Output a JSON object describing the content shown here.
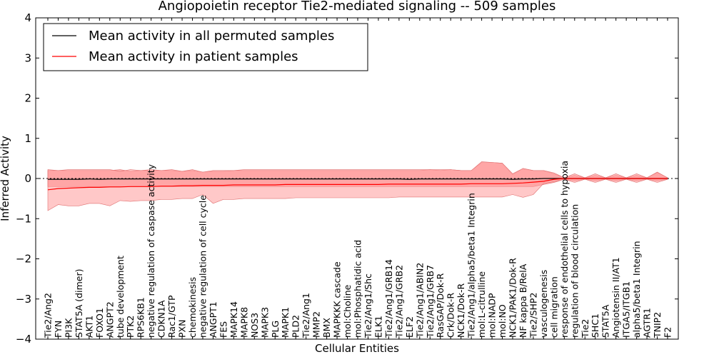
{
  "chart_data": {
    "type": "line",
    "title": "Angiopoietin receptor Tie2-mediated signaling -- 509 samples",
    "xlabel": "Cellular Entities",
    "ylabel": "Inferred Activity",
    "ylim": [
      -4,
      4
    ],
    "yticks": [
      -4,
      -3,
      -2,
      -1,
      0,
      1,
      2,
      3,
      4
    ],
    "grid": false,
    "legend_position": "top-left",
    "categories": [
      "Tie2/Ang2",
      "FYN",
      "PI3K",
      "STAT5A (dimer)",
      "AKT1",
      "FOXO1",
      "ANGPT2",
      "tube development",
      "PTK2",
      "RPS6KB1",
      "negative regulation of caspase activity",
      "CDKN1A",
      "Rac1/GTP",
      "PXN",
      "chemokinesis",
      "negative regulation of cell cycle",
      "ANGPT1",
      "FES",
      "MAPK14",
      "MAPK8",
      "NOS3",
      "MAPK3",
      "PLG",
      "MAPK1",
      "PLD2",
      "Tie2/Ang1",
      "MMP2",
      "BMX",
      "MAPKKK cascade",
      "mol:Choline",
      "mol:Phosphatidic acid",
      "Tie2/Ang1/Shc",
      "ELK1",
      "Tie2/Ang1/GRB14",
      "Tie2/Ang1/GRB2",
      "ELF2",
      "Tie2/Ang1/ABIN2",
      "Tie2/Ang1/GRB7",
      "RasGAP/Dok-R",
      "Crk/Dok-R",
      "NCK1/Dok-R",
      "Tie2/Ang1/alpha5/beta1 Integrin",
      "mol:L-citrulline",
      "mol:NADP",
      "mol:NO",
      "NCK1/PAK1/Dok-R",
      "NF kappa B/RelA",
      "Tie2/SHP2",
      "vasculogenesis",
      "cell migration",
      "response of endothelial cells to hypoxia",
      "regulation of blood circulation",
      "Tie2",
      "SHC1",
      "STAT5A",
      "Angiotensin II/AT1",
      "ITGA5/ITGB1",
      "alpha5/beta1 Integrin",
      "AGTR1",
      "TNIP2",
      "F2"
    ],
    "series": [
      {
        "name": "Mean activity in all permuted samples",
        "color": "#000000",
        "values": [
          -0.02,
          -0.02,
          -0.02,
          -0.02,
          -0.01,
          -0.02,
          -0.01,
          -0.01,
          -0.01,
          -0.01,
          -0.01,
          -0.01,
          -0.01,
          -0.01,
          -0.01,
          -0.01,
          -0.01,
          -0.01,
          -0.01,
          -0.01,
          -0.01,
          -0.01,
          -0.01,
          -0.01,
          -0.01,
          -0.01,
          -0.01,
          -0.01,
          -0.01,
          -0.01,
          -0.01,
          -0.01,
          -0.01,
          -0.01,
          -0.01,
          -0.02,
          -0.01,
          -0.01,
          -0.01,
          -0.01,
          -0.01,
          -0.01,
          -0.01,
          -0.01,
          -0.01,
          -0.02,
          -0.01,
          -0.01,
          0.0,
          0.0,
          0.0,
          0.0,
          0.0,
          0.0,
          0.0,
          0.0,
          0.0,
          0.0,
          0.0,
          0.0,
          0.0
        ],
        "band_upper": [
          0.2,
          0.2,
          0.2,
          0.2,
          0.2,
          0.2,
          0.2,
          0.22,
          0.18,
          0.2,
          0.2,
          0.2,
          0.2,
          0.18,
          0.2,
          0.16,
          0.18,
          0.18,
          0.2,
          0.2,
          0.2,
          0.2,
          0.2,
          0.2,
          0.2,
          0.2,
          0.2,
          0.2,
          0.2,
          0.2,
          0.2,
          0.2,
          0.2,
          0.2,
          0.2,
          0.2,
          0.2,
          0.22,
          0.2,
          0.22,
          0.2,
          0.2,
          0.4,
          0.4,
          0.38,
          0.1,
          0.25,
          0.2,
          0.2,
          0.12,
          0.02,
          0.08,
          0.02,
          0.08,
          0.02,
          0.08,
          0.02,
          0.08,
          0.02,
          0.15,
          0.02
        ],
        "band_lower": [
          -0.2,
          -0.2,
          -0.2,
          -0.2,
          -0.2,
          -0.2,
          -0.2,
          -0.2,
          -0.2,
          -0.2,
          -0.2,
          -0.2,
          -0.2,
          -0.2,
          -0.2,
          -0.2,
          -0.2,
          -0.2,
          -0.2,
          -0.2,
          -0.2,
          -0.2,
          -0.2,
          -0.2,
          -0.2,
          -0.2,
          -0.2,
          -0.2,
          -0.2,
          -0.2,
          -0.2,
          -0.2,
          -0.2,
          -0.2,
          -0.2,
          -0.2,
          -0.2,
          -0.2,
          -0.2,
          -0.2,
          -0.2,
          -0.2,
          -0.2,
          -0.2,
          -0.2,
          -0.2,
          -0.2,
          -0.2,
          -0.15,
          -0.1,
          -0.02,
          -0.06,
          -0.02,
          -0.06,
          -0.02,
          -0.06,
          -0.02,
          -0.06,
          -0.02,
          -0.06,
          -0.02
        ]
      },
      {
        "name": "Mean activity in patient samples",
        "color": "#ff0000",
        "fill_color": "#ff9a9a",
        "values": [
          -0.28,
          -0.25,
          -0.24,
          -0.23,
          -0.22,
          -0.22,
          -0.21,
          -0.21,
          -0.2,
          -0.2,
          -0.2,
          -0.19,
          -0.19,
          -0.18,
          -0.18,
          -0.17,
          -0.17,
          -0.17,
          -0.16,
          -0.16,
          -0.16,
          -0.16,
          -0.16,
          -0.15,
          -0.15,
          -0.15,
          -0.15,
          -0.15,
          -0.15,
          -0.15,
          -0.15,
          -0.15,
          -0.15,
          -0.14,
          -0.14,
          -0.14,
          -0.14,
          -0.14,
          -0.14,
          -0.14,
          -0.14,
          -0.13,
          -0.13,
          -0.13,
          -0.13,
          -0.12,
          -0.11,
          -0.09,
          -0.07,
          -0.02,
          0.0,
          0.0,
          0.0,
          0.0,
          0.0,
          0.0,
          0.0,
          0.0,
          0.0,
          0.0,
          0.0
        ],
        "band_upper": [
          0.22,
          0.2,
          0.22,
          0.22,
          0.22,
          0.22,
          0.22,
          0.18,
          0.22,
          0.2,
          0.22,
          0.2,
          0.22,
          0.18,
          0.22,
          0.16,
          0.2,
          0.2,
          0.2,
          0.22,
          0.22,
          0.22,
          0.22,
          0.22,
          0.22,
          0.22,
          0.22,
          0.22,
          0.22,
          0.22,
          0.22,
          0.22,
          0.22,
          0.22,
          0.22,
          0.22,
          0.22,
          0.22,
          0.22,
          0.22,
          0.2,
          0.2,
          0.42,
          0.4,
          0.38,
          0.12,
          0.25,
          0.2,
          0.2,
          0.14,
          0.02,
          0.12,
          0.02,
          0.12,
          0.02,
          0.12,
          0.02,
          0.12,
          0.02,
          0.16,
          0.02
        ],
        "band_lower": [
          -0.8,
          -0.65,
          -0.68,
          -0.68,
          -0.62,
          -0.62,
          -0.68,
          -0.55,
          -0.57,
          -0.55,
          -0.55,
          -0.52,
          -0.52,
          -0.5,
          -0.5,
          -0.4,
          -0.62,
          -0.52,
          -0.52,
          -0.5,
          -0.5,
          -0.5,
          -0.5,
          -0.5,
          -0.48,
          -0.48,
          -0.48,
          -0.48,
          -0.48,
          -0.48,
          -0.48,
          -0.48,
          -0.48,
          -0.48,
          -0.46,
          -0.46,
          -0.46,
          -0.46,
          -0.46,
          -0.46,
          -0.46,
          -0.46,
          -0.46,
          -0.46,
          -0.46,
          -0.4,
          -0.47,
          -0.4,
          -0.12,
          -0.08,
          -0.02,
          -0.1,
          -0.02,
          -0.1,
          -0.02,
          -0.1,
          -0.02,
          -0.1,
          -0.02,
          -0.1,
          -0.02
        ]
      }
    ]
  }
}
